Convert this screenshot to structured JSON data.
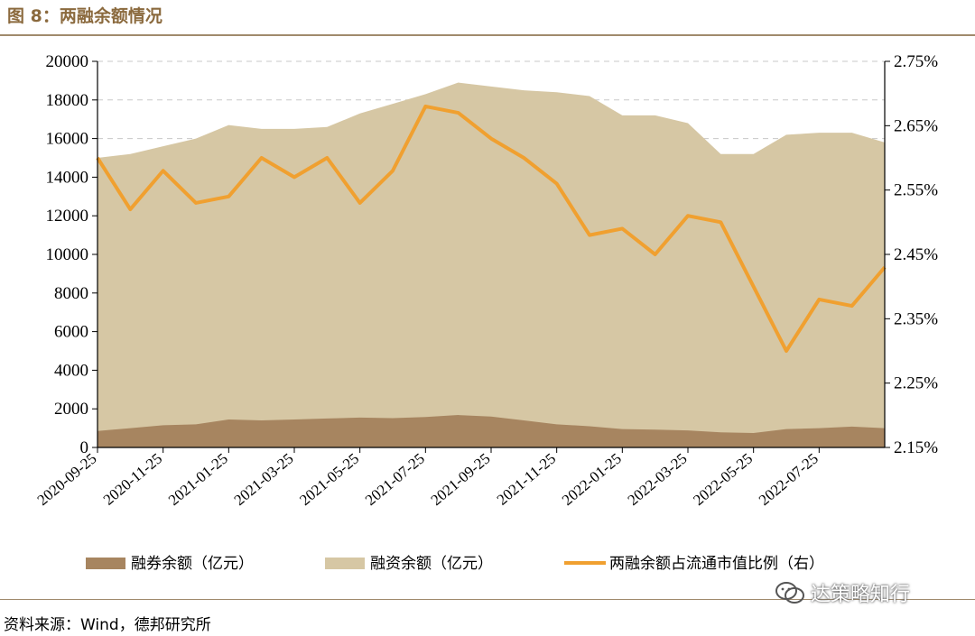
{
  "header": {
    "title": "图 8：两融余额情况"
  },
  "footer": {
    "source": "资料来源：Wind，德邦研究所",
    "watermark": "达策略知行"
  },
  "chart_data": {
    "type": "area",
    "x": [
      "2020-09-25",
      "2020-10-25",
      "2020-11-25",
      "2020-12-25",
      "2021-01-25",
      "2021-02-25",
      "2021-03-25",
      "2021-04-25",
      "2021-05-25",
      "2021-06-25",
      "2021-07-25",
      "2021-08-25",
      "2021-09-25",
      "2021-10-25",
      "2021-11-25",
      "2021-12-25",
      "2022-01-25",
      "2022-02-25",
      "2022-03-25",
      "2022-04-25",
      "2022-05-25",
      "2022-06-25",
      "2022-07-25",
      "2022-08-25",
      "2022-09-30"
    ],
    "x_ticks": [
      "2020-09-25",
      "2020-11-25",
      "2021-01-25",
      "2021-03-25",
      "2021-05-25",
      "2021-07-25",
      "2021-09-25",
      "2021-11-25",
      "2022-01-25",
      "2022-03-25",
      "2022-05-25",
      "2022-07-25"
    ],
    "left_axis": {
      "ylim": [
        0,
        20000
      ],
      "ticks": [
        "0",
        "2000",
        "4000",
        "6000",
        "8000",
        "10000",
        "12000",
        "14000",
        "16000",
        "18000",
        "20000"
      ]
    },
    "right_axis": {
      "ylim": [
        2.15,
        2.75
      ],
      "ticks": [
        "2.15%",
        "2.25%",
        "2.35%",
        "2.45%",
        "2.55%",
        "2.65%",
        "2.75%"
      ]
    },
    "grid": "horizontal dashed",
    "legend_position": "bottom",
    "series": [
      {
        "name": "融券余额（亿元）",
        "kind": "area",
        "axis": "left",
        "color": "#a78560",
        "values": [
          850,
          1000,
          1150,
          1200,
          1450,
          1400,
          1450,
          1500,
          1550,
          1520,
          1580,
          1680,
          1600,
          1400,
          1200,
          1100,
          950,
          920,
          880,
          780,
          750,
          950,
          1000,
          1080,
          1000
        ]
      },
      {
        "name": "融资余额（亿元）",
        "kind": "area",
        "axis": "left",
        "color": "#d6c7a4",
        "values": [
          15000,
          15200,
          15600,
          16000,
          16700,
          16500,
          16500,
          16600,
          17300,
          17800,
          18300,
          18900,
          18700,
          18500,
          18400,
          18200,
          17200,
          17200,
          16800,
          15200,
          15200,
          16200,
          16300,
          16300,
          15800
        ]
      },
      {
        "name": "两融余额占流通市值比例（右）",
        "kind": "line",
        "axis": "right",
        "color": "#f0a030",
        "values": [
          2.6,
          2.52,
          2.58,
          2.53,
          2.54,
          2.6,
          2.57,
          2.6,
          2.53,
          2.58,
          2.68,
          2.67,
          2.63,
          2.6,
          2.56,
          2.48,
          2.49,
          2.45,
          2.51,
          2.5,
          2.4,
          2.3,
          2.38,
          2.37,
          2.43
        ]
      }
    ]
  }
}
